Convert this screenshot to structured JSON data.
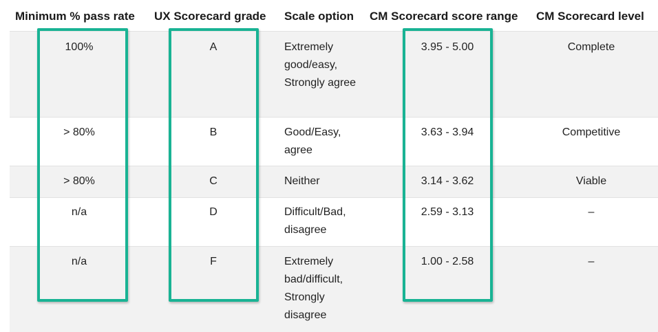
{
  "headers": [
    "Minimum % pass rate",
    "UX Scorecard grade",
    "Scale option",
    "CM Scorecard score range",
    "CM Scorecard level"
  ],
  "rows": [
    {
      "pass_rate": "100%",
      "grade": "A",
      "scale": "Extremely good/easy, Strongly agree",
      "range": "3.95 - 5.00",
      "level": "Complete"
    },
    {
      "pass_rate": "> 80%",
      "grade": "B",
      "scale": "Good/Easy, agree",
      "range": "3.63 - 3.94",
      "level": "Competitive"
    },
    {
      "pass_rate": "> 80%",
      "grade": "C",
      "scale": "Neither",
      "range": "3.14 - 3.62",
      "level": "Viable"
    },
    {
      "pass_rate": "n/a",
      "grade": "D",
      "scale": "Difficult/Bad, disagree",
      "range": "2.59 - 3.13",
      "level": "–"
    },
    {
      "pass_rate": "n/a",
      "grade": "F",
      "scale": "Extremely bad/difficult, Strongly disagree",
      "range": "1.00 - 2.58",
      "level": "–"
    }
  ],
  "highlight_color": "#19b394"
}
